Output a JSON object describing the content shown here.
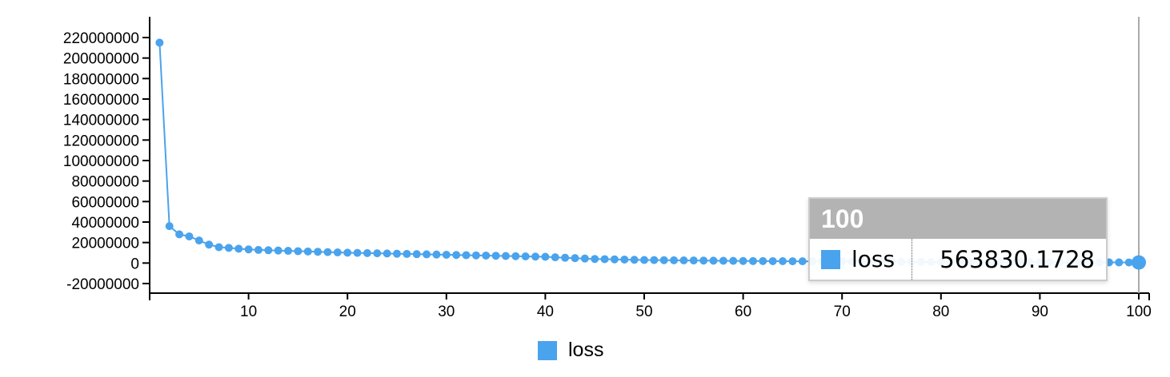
{
  "chart_data": {
    "type": "line",
    "title": "",
    "xlabel": "",
    "ylabel": "",
    "xlim": [
      0,
      100
    ],
    "ylim": [
      -20000000,
      220000000
    ],
    "x_ticks": [
      10,
      20,
      30,
      40,
      50,
      60,
      70,
      80,
      90,
      100
    ],
    "x_tick_labels": [
      "10",
      "20",
      "30",
      "40",
      "50",
      "60",
      "70",
      "80",
      "90",
      "100"
    ],
    "y_ticks": [
      -20000000,
      0,
      20000000,
      40000000,
      60000000,
      80000000,
      100000000,
      120000000,
      140000000,
      160000000,
      180000000,
      200000000,
      220000000
    ],
    "y_tick_labels": [
      "-20000000",
      "0",
      "20000000",
      "40000000",
      "60000000",
      "80000000",
      "100000000",
      "120000000",
      "140000000",
      "160000000",
      "180000000",
      "200000000",
      "220000000"
    ],
    "grid": false,
    "legend_position": "bottom",
    "color": "#4aa3ed",
    "series": [
      {
        "name": "loss",
        "x": [
          1,
          2,
          3,
          4,
          5,
          6,
          7,
          8,
          9,
          10,
          11,
          12,
          13,
          14,
          15,
          16,
          17,
          18,
          19,
          20,
          21,
          22,
          23,
          24,
          25,
          26,
          27,
          28,
          29,
          30,
          31,
          32,
          33,
          34,
          35,
          36,
          37,
          38,
          39,
          40,
          41,
          42,
          43,
          44,
          45,
          46,
          47,
          48,
          49,
          50,
          51,
          52,
          53,
          54,
          55,
          56,
          57,
          58,
          59,
          60,
          61,
          62,
          63,
          64,
          65,
          66,
          67,
          68,
          69,
          70,
          71,
          72,
          73,
          74,
          75,
          76,
          77,
          78,
          79,
          80,
          81,
          82,
          83,
          84,
          85,
          86,
          87,
          88,
          89,
          90,
          91,
          92,
          93,
          94,
          95,
          96,
          97,
          98,
          99,
          100
        ],
        "values": [
          215000000,
          36000000,
          28000000,
          26000000,
          22000000,
          18000000,
          15500000,
          14800000,
          14000000,
          13300000,
          12800000,
          12500000,
          12200000,
          11900000,
          11600000,
          11300000,
          11000000,
          10700000,
          10400000,
          10100000,
          9900000,
          9700000,
          9500000,
          9300000,
          9100000,
          8900000,
          8700000,
          8500000,
          8300000,
          8100000,
          7900000,
          7700000,
          7500000,
          7300000,
          7100000,
          6900000,
          6700000,
          6500000,
          6300000,
          6100000,
          5600000,
          5200000,
          4800000,
          4400000,
          4000000,
          3800000,
          3600000,
          3400000,
          3200000,
          3000000,
          2900000,
          2800000,
          2700000,
          2600000,
          2500000,
          2400000,
          2300000,
          2200000,
          2100000,
          2000000,
          1950000,
          1900000,
          1850000,
          1800000,
          1750000,
          1700000,
          1650000,
          1600000,
          1550000,
          1500000,
          1450000,
          1400000,
          1350000,
          1300000,
          1250000,
          1200000,
          1150000,
          1100000,
          1050000,
          1000000,
          980000,
          960000,
          940000,
          920000,
          900000,
          880000,
          860000,
          840000,
          820000,
          800000,
          780000,
          760000,
          740000,
          720000,
          700000,
          680000,
          650000,
          620000,
          590000,
          563830.1728
        ]
      }
    ]
  },
  "legend": {
    "label": "loss"
  },
  "tooltip": {
    "header": "100",
    "series_name": "loss",
    "value": "563830.1728"
  }
}
